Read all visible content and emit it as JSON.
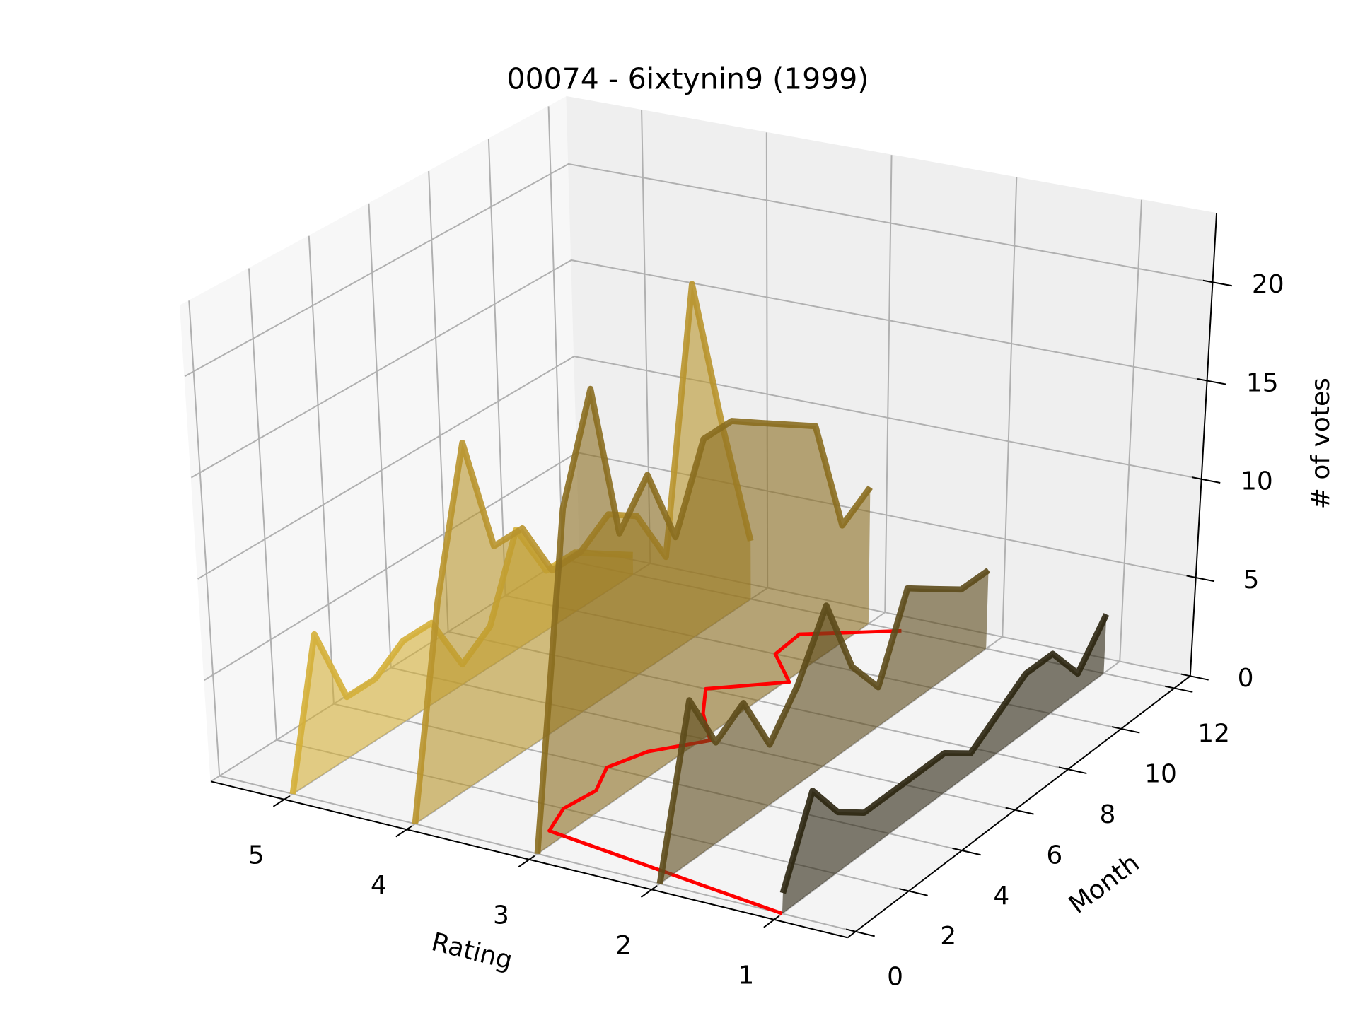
{
  "chart_data": {
    "type": "line3d",
    "title": "00074 - 6ixtynin9 (1999)",
    "xlabel": "Rating",
    "ylabel": "Month",
    "zlabel": "# of votes",
    "xlim": [
      5.6,
      0.4
    ],
    "ylim": [
      -0.3,
      12.6
    ],
    "zlim": [
      0,
      23.5
    ],
    "xticks": [
      1,
      2,
      3,
      4,
      5
    ],
    "yticks": [
      0,
      2,
      4,
      6,
      8,
      10,
      12
    ],
    "zticks": [
      0,
      5,
      10,
      15,
      20
    ],
    "grid": true,
    "months": [
      0,
      1,
      2,
      3,
      4,
      5,
      6,
      7,
      8,
      9,
      10,
      11,
      12
    ],
    "series": [
      {
        "rating": 5,
        "color": "#d4af37",
        "values": [
          0,
          7,
          3,
          3,
          4,
          4,
          1,
          2,
          6,
          3,
          3,
          2,
          1
        ]
      },
      {
        "rating": 4,
        "color": "#b8942c",
        "values": [
          0,
          10,
          17,
          11,
          11,
          8,
          8,
          9,
          8,
          5,
          18,
          10,
          3
        ]
      },
      {
        "rating": 3,
        "color": "#8a6d1f",
        "values": [
          0,
          16,
          21,
          13,
          15,
          11,
          15,
          15,
          14,
          13,
          12,
          6,
          7
        ]
      },
      {
        "rating": 2,
        "color": "#5c4a1a",
        "values": [
          0,
          8,
          5,
          6,
          3,
          5,
          8,
          4,
          2,
          6,
          5,
          4,
          4
        ]
      },
      {
        "rating": 1,
        "color": "#2b2510",
        "values": [
          1,
          5,
          3,
          2,
          2,
          2,
          2,
          1,
          2,
          3,
          3,
          1,
          3
        ]
      }
    ],
    "mean_line": {
      "color": "#ff0000",
      "values": [
        1.0,
        3.13,
        3.24,
        3.2,
        3.34,
        3.23,
        2.94,
        3.23,
        3.44,
        2.97,
        3.32,
        3.35,
        2.72
      ]
    }
  }
}
